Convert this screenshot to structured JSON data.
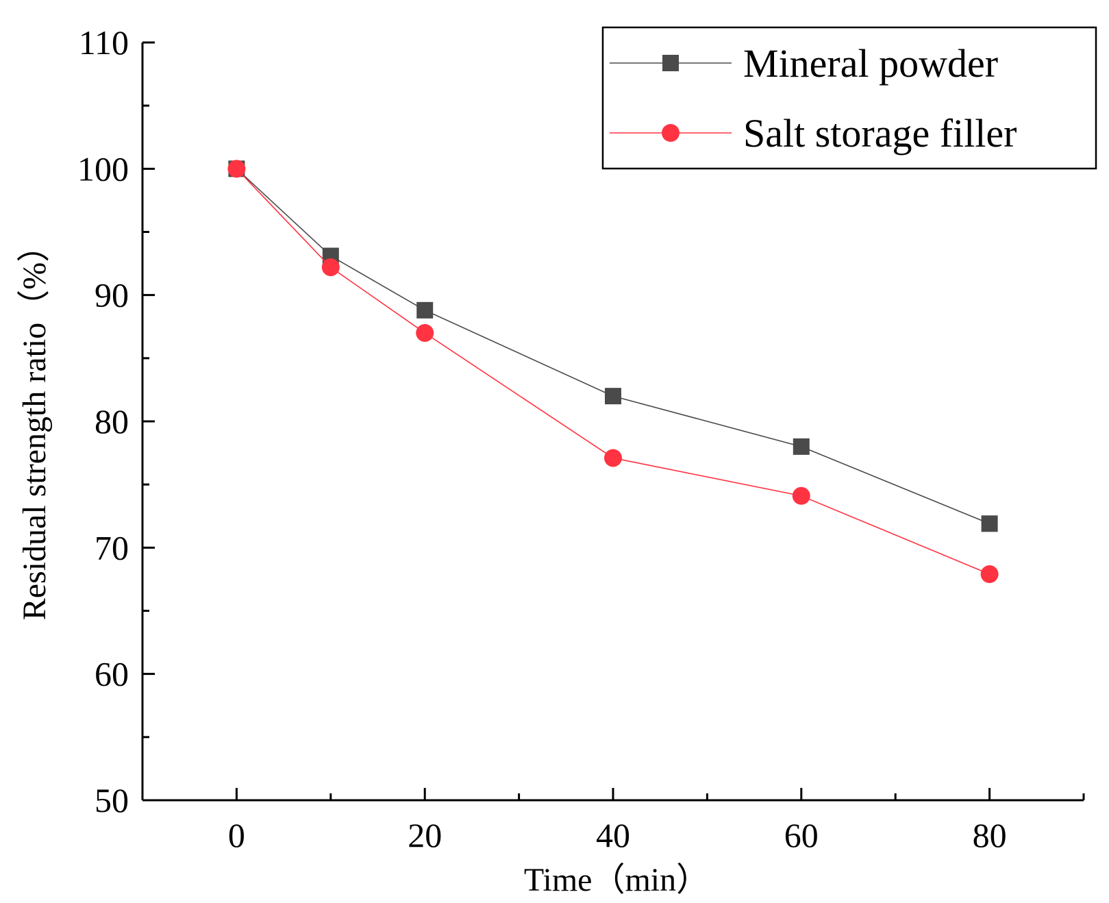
{
  "chart_data": {
    "type": "line",
    "title": "",
    "xlabel": "Time（min）",
    "ylabel": "Residual strength ratio（%）",
    "xlim": [
      -10,
      90
    ],
    "ylim": [
      50,
      110
    ],
    "x_ticks": [
      0,
      20,
      40,
      60,
      80
    ],
    "x_ticks_minor": [
      -10,
      10,
      30,
      50,
      70,
      90
    ],
    "y_ticks": [
      50,
      60,
      70,
      80,
      90,
      100,
      110
    ],
    "y_ticks_minor": [
      55,
      65,
      75,
      85,
      95,
      105
    ],
    "legend_position": "top-right",
    "series": [
      {
        "name": "Mineral powder",
        "color": "#4a4a4a",
        "marker": "square",
        "x": [
          0,
          10,
          20,
          40,
          60,
          80
        ],
        "y": [
          100,
          93.1,
          88.8,
          82,
          78,
          71.9
        ]
      },
      {
        "name": "Salt storage filler",
        "color": "#ff3341",
        "marker": "circle",
        "x": [
          0,
          10,
          20,
          40,
          60,
          80
        ],
        "y": [
          100,
          92.2,
          87,
          77.1,
          74.1,
          67.9
        ]
      }
    ]
  }
}
